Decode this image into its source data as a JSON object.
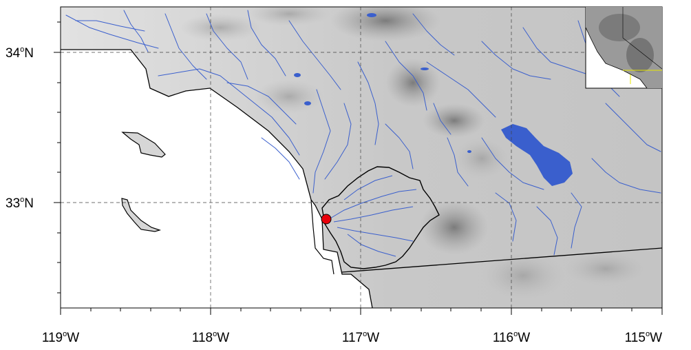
{
  "map": {
    "colors": {
      "ocean": "#ffffff",
      "land_light": "#dcdcdc",
      "land_mid": "#bdbdbd",
      "land_dark": "#8a8a8a",
      "rivers": "#3a5fcd",
      "lakes": "#3a5fcd",
      "outline": "#000000",
      "station": "#e8000b",
      "inset_highlight": "#e8e800"
    },
    "x_ticks": [
      {
        "text": "119",
        "unit": "o",
        "hemi": "W"
      },
      {
        "text": "118",
        "unit": "o",
        "hemi": "W"
      },
      {
        "text": "117",
        "unit": "o",
        "hemi": "W"
      },
      {
        "text": "116",
        "unit": "o",
        "hemi": "W"
      },
      {
        "text": "115",
        "unit": "o",
        "hemi": "W"
      }
    ],
    "y_ticks": [
      {
        "text": "34",
        "unit": "o",
        "hemi": "N"
      },
      {
        "text": "33",
        "unit": "o",
        "hemi": "N"
      }
    ],
    "grid_lines": "dashed",
    "station_marker": "red circle",
    "inset": "regional overview"
  }
}
